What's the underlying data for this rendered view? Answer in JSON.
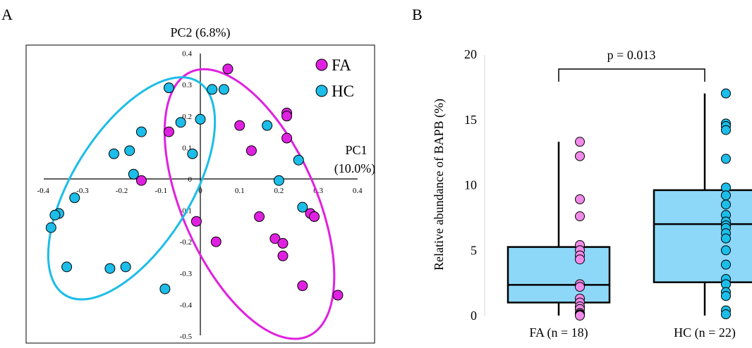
{
  "panel_a": {
    "letter": "A",
    "pc1_label": "PC1",
    "pc1_pct": "(10.0%)",
    "pc2_label": "PC2 (6.8%)",
    "legend": [
      {
        "label": "FA",
        "color": "#e020e0"
      },
      {
        "label": "HC",
        "color": "#1cbde8"
      }
    ]
  },
  "panel_b": {
    "letter": "B",
    "ylabel": "Relative abundance of BAPB (%)",
    "p_value": "p = 0.013"
  },
  "chart_data": [
    {
      "type": "scatter",
      "title": "",
      "xlabel": "PC1 (10.0%)",
      "ylabel": "PC2 (6.8%)",
      "xlim": [
        -0.4,
        0.4
      ],
      "ylim": [
        -0.5,
        0.4
      ],
      "x_ticks": [
        "-0.4",
        "-0.3",
        "-0.2",
        "-0.1",
        "0",
        "0.1",
        "0.2",
        "0.3",
        "0.4"
      ],
      "y_ticks": [
        "0.4",
        "0.3",
        "0.2",
        "0.1",
        "0",
        "-0.1",
        "-0.2",
        "-0.3",
        "-0.4",
        "-0.5"
      ],
      "series": [
        {
          "name": "FA",
          "color": "#e020e0",
          "points": [
            [
              0.07,
              0.35
            ],
            [
              0.22,
              0.21
            ],
            [
              0.22,
              0.2
            ],
            [
              -0.08,
              0.15
            ],
            [
              0.1,
              0.17
            ],
            [
              0.22,
              0.13
            ],
            [
              0.13,
              0.09
            ],
            [
              -0.15,
              -0.005
            ],
            [
              0.15,
              -0.12
            ],
            [
              0.28,
              -0.11
            ],
            [
              0.29,
              -0.12
            ],
            [
              -0.01,
              -0.135
            ],
            [
              0.04,
              -0.2
            ],
            [
              0.19,
              -0.19
            ],
            [
              0.21,
              -0.205
            ],
            [
              0.21,
              -0.245
            ],
            [
              0.26,
              -0.34
            ],
            [
              0.35,
              -0.37
            ]
          ]
        },
        {
          "name": "HC",
          "color": "#1cbde8",
          "points": [
            [
              0.03,
              0.285
            ],
            [
              0.06,
              0.285
            ],
            [
              -0.08,
              0.29
            ],
            [
              -0.15,
              0.15
            ],
            [
              -0.22,
              0.08
            ],
            [
              -0.18,
              0.09
            ],
            [
              -0.05,
              0.18
            ],
            [
              0.0,
              0.19
            ],
            [
              -0.02,
              0.08
            ],
            [
              -0.17,
              0.015
            ],
            [
              0.17,
              0.17
            ],
            [
              0.25,
              0.06
            ],
            [
              0.2,
              -0.005
            ],
            [
              -0.32,
              -0.06
            ],
            [
              -0.36,
              -0.11
            ],
            [
              -0.37,
              -0.115
            ],
            [
              -0.38,
              -0.155
            ],
            [
              -0.34,
              -0.28
            ],
            [
              -0.23,
              -0.285
            ],
            [
              -0.19,
              -0.28
            ],
            [
              -0.09,
              -0.35
            ],
            [
              0.26,
              -0.09
            ]
          ]
        }
      ],
      "ellipses": [
        {
          "series": "FA",
          "center": [
            0.125,
            -0.08
          ],
          "semi_axes": [
            0.17,
            0.46
          ],
          "angle_deg": -24
        },
        {
          "series": "HC",
          "center": [
            -0.175,
            -0.03
          ],
          "semi_axes": [
            0.15,
            0.4
          ],
          "angle_deg": 32
        }
      ]
    },
    {
      "type": "box",
      "title": "",
      "xlabel": "",
      "ylabel": "Relative abundance of BAPB (%)",
      "ylim": [
        0,
        20
      ],
      "y_ticks": [
        0,
        5,
        10,
        15,
        20
      ],
      "categories": [
        "FA (n = 18)",
        "HC (n = 22)"
      ],
      "boxes": [
        {
          "group": "FA (n = 18)",
          "min": 0,
          "q1": 1.0,
          "median": 2.35,
          "q3": 5.25,
          "max": 13.3,
          "color": "#8dd8f8"
        },
        {
          "group": "HC (n = 22)",
          "min": 0,
          "q1": 2.55,
          "median": 7.0,
          "q3": 9.6,
          "max": 17.0,
          "color": "#8dd8f8"
        }
      ],
      "points": [
        {
          "group": "FA (n = 18)",
          "color": "#f08ae8",
          "values": [
            13.3,
            12.2,
            8.9,
            7.6,
            5.4,
            5.0,
            4.6,
            4.3,
            2.4,
            2.2,
            1.3,
            1.0,
            0.7,
            0.5,
            0.2,
            0.1,
            0.05,
            0
          ]
        },
        {
          "group": "HC (n = 22)",
          "color": "#1cbde8",
          "values": [
            17.0,
            14.7,
            14.5,
            14.2,
            12.0,
            9.8,
            9.2,
            8.5,
            7.7,
            7.2,
            6.9,
            6.7,
            6.3,
            5.9,
            5.0,
            3.9,
            2.8,
            2.4,
            1.8,
            1.5,
            0.4,
            0.1
          ]
        }
      ],
      "annotation": "p = 0.013"
    }
  ]
}
